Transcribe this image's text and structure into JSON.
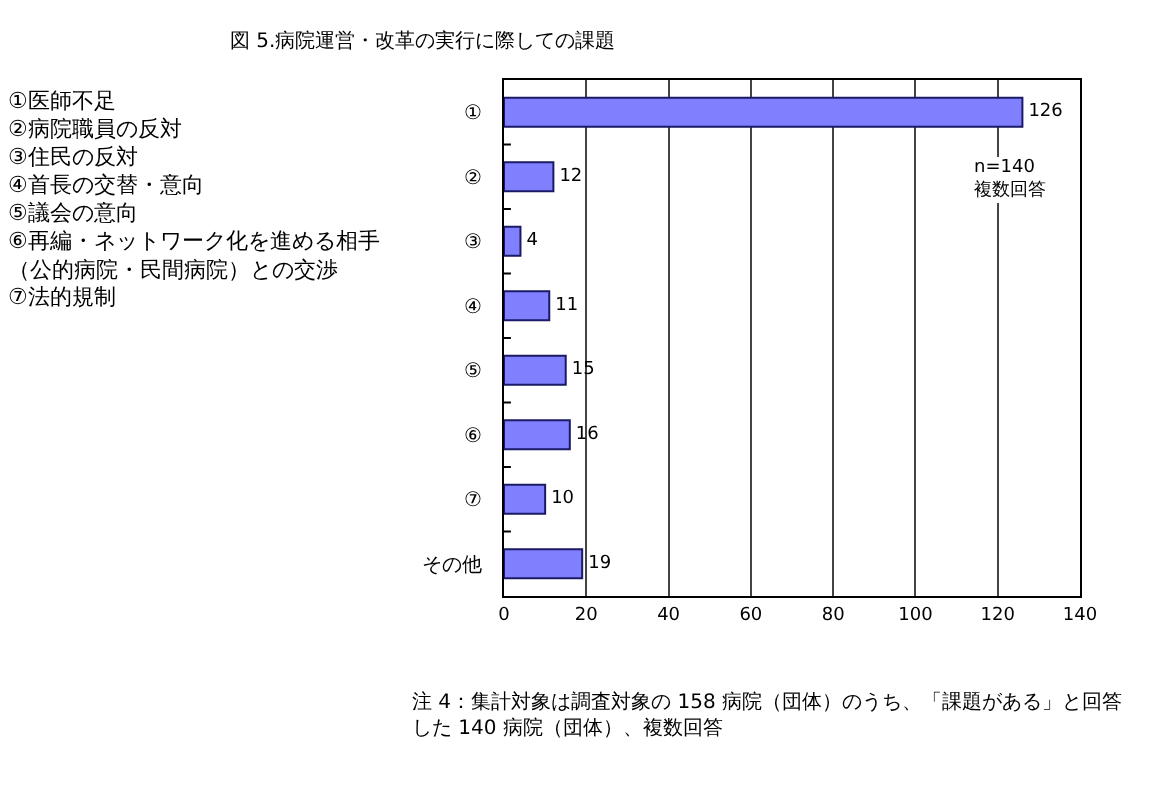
{
  "chart_data": {
    "type": "bar",
    "orientation": "horizontal",
    "title": "図 5.病院運営・改革の実行に際しての課題",
    "categories": [
      "①",
      "②",
      "③",
      "④",
      "⑤",
      "⑥",
      "⑦",
      "その他"
    ],
    "values": [
      126,
      12,
      4,
      11,
      15,
      16,
      10,
      19
    ],
    "color": "#8080ff",
    "data_labels": true,
    "xlim": [
      0,
      140
    ],
    "xticks": [
      0,
      20,
      40,
      60,
      80,
      100,
      120,
      140
    ],
    "grid": "x",
    "annotations": [
      "①医師不足",
      "②病院職員の反対",
      "③住民の反対",
      "④首長の交替・意向",
      "⑤議会の意向",
      "⑥再編・ネットワーク化を進める相手（公的病院・民間病院）との交渉",
      "⑦法的規制",
      "n=140\n複数回答",
      "注 4：集計対象は調査対象の 158 病院（団体）のうち、「課題がある」と回答した 140 病院（団体）、複数回答"
    ]
  }
}
